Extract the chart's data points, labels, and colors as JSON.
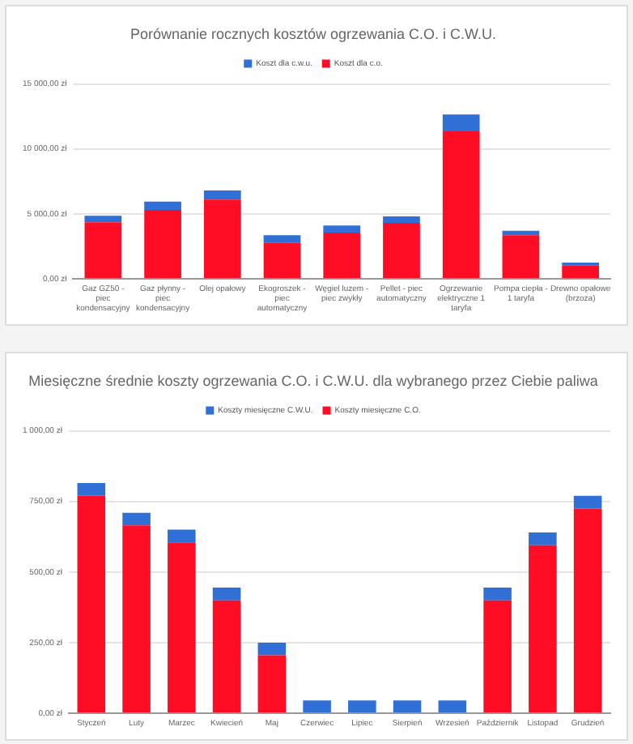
{
  "chart_data": [
    {
      "type": "bar",
      "title": "Porównanie rocznych kosztów ogrzewania C.O. i C.W.U.",
      "stacked": true,
      "legend": "top",
      "grid": "y",
      "categories": [
        "Gaz GZ50 - piec kondensacyjny",
        "Gaz płynny - piec kondensacyjny",
        "Olej opałowy",
        "Ekogroszek - piec automatyczny",
        "Węgiel luzem - piec zwykły",
        "Pellet - piec automatyczny",
        "Ogrzewanie elektryczne 1 taryfa",
        "Pompa ciepła - 1 taryfa",
        "Drewno opałowe (brzoza)"
      ],
      "series": [
        {
          "name": "Koszt dla c.o.",
          "color": "#ff0d25",
          "values": [
            4350,
            5300,
            6100,
            2800,
            3550,
            4300,
            11350,
            3350,
            1050
          ]
        },
        {
          "name": "Koszt dla c.w.u.",
          "color": "#2f6fd6",
          "values": [
            500,
            650,
            700,
            550,
            550,
            500,
            1300,
            350,
            200
          ]
        }
      ],
      "ylim": [
        0,
        15000
      ],
      "yticks": [
        {
          "value": 0,
          "label": "0,00 zł"
        },
        {
          "value": 5000,
          "label": "5 000,00 zł"
        },
        {
          "value": 10000,
          "label": "10 000,00 zł"
        },
        {
          "value": 15000,
          "label": "15 000,00 zł"
        }
      ]
    },
    {
      "type": "bar",
      "title": "Miesięczne średnie koszty ogrzewania C.O. i C.W.U. dla wybranego przez Ciebie paliwa",
      "stacked": true,
      "legend": "top",
      "grid": "y",
      "categories": [
        "Styczeń",
        "Luty",
        "Marzec",
        "Kwiecień",
        "Maj",
        "Czerwiec",
        "Lipiec",
        "Sierpień",
        "Wrzesień",
        "Październik",
        "Listopad",
        "Grudzień"
      ],
      "series": [
        {
          "name": "Koszty miesięczne C.O.",
          "color": "#ff0d25",
          "values": [
            770,
            665,
            605,
            400,
            205,
            0,
            0,
            0,
            0,
            400,
            595,
            725
          ]
        },
        {
          "name": "Koszty miesięczne C.W.U.",
          "color": "#2f6fd6",
          "values": [
            45,
            45,
            45,
            45,
            45,
            45,
            45,
            45,
            45,
            45,
            45,
            45
          ]
        }
      ],
      "ylim": [
        0,
        1000
      ],
      "yticks": [
        {
          "value": 0,
          "label": "0,00 zł"
        },
        {
          "value": 250,
          "label": "250,00 zł"
        },
        {
          "value": 500,
          "label": "500,00 zł"
        },
        {
          "value": 750,
          "label": "750,00 zł"
        },
        {
          "value": 1000,
          "label": "1 000,00 zł"
        }
      ]
    }
  ]
}
